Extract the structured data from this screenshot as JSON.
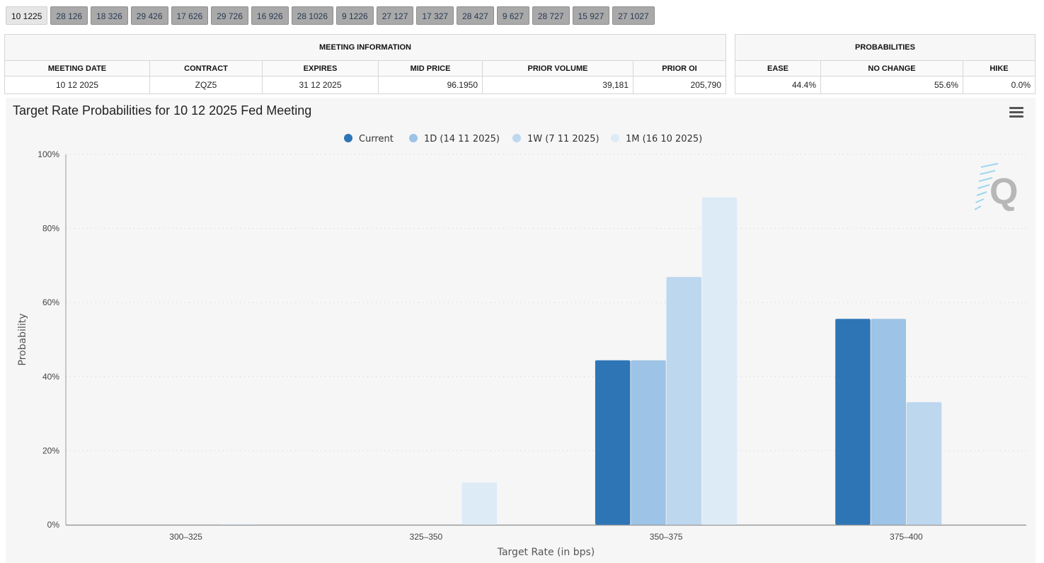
{
  "tabs": [
    "10 1225",
    "28 126",
    "18 326",
    "29 426",
    "17 626",
    "29 726",
    "16 926",
    "28 1026",
    "9 1226",
    "27 127",
    "17 327",
    "28 427",
    "9 627",
    "28 727",
    "15 927",
    "27 1027"
  ],
  "active_tab": 0,
  "meeting_info": {
    "header": "MEETING INFORMATION",
    "columns": [
      "MEETING DATE",
      "CONTRACT",
      "EXPIRES",
      "MID PRICE",
      "PRIOR VOLUME",
      "PRIOR OI"
    ],
    "row": [
      "10 12 2025",
      "ZQZ5",
      "31 12 2025",
      "96.1950",
      "39,181",
      "205,790"
    ]
  },
  "probabilities": {
    "header": "PROBABILITIES",
    "columns": [
      "EASE",
      "NO CHANGE",
      "HIKE"
    ],
    "row": [
      "44.4%",
      "55.6%",
      "0.0%"
    ]
  },
  "chart_data": {
    "type": "bar",
    "title": "Target Rate Probabilities for 10 12 2025 Fed Meeting",
    "xlabel": "Target Rate (in bps)",
    "ylabel": "Probability",
    "ylim": [
      0,
      100
    ],
    "yticks": [
      "0%",
      "20%",
      "40%",
      "60%",
      "80%",
      "100%"
    ],
    "grid": true,
    "legend_position": "top-center",
    "categories": [
      "300–325",
      "325–350",
      "350–375",
      "375–400"
    ],
    "series": [
      {
        "name": "Current",
        "color": "#2e75b6",
        "values": [
          0,
          0,
          44.4,
          55.6
        ]
      },
      {
        "name": "1D (14 11 2025)",
        "color": "#9dc3e6",
        "values": [
          0,
          0,
          44.4,
          55.6
        ]
      },
      {
        "name": "1W (7 11 2025)",
        "color": "#bdd7ee",
        "values": [
          0,
          0,
          66.9,
          33.1
        ]
      },
      {
        "name": "1M (16 10 2025)",
        "color": "#ddebf7",
        "values": [
          0.2,
          11.4,
          88.4,
          0
        ]
      }
    ]
  }
}
